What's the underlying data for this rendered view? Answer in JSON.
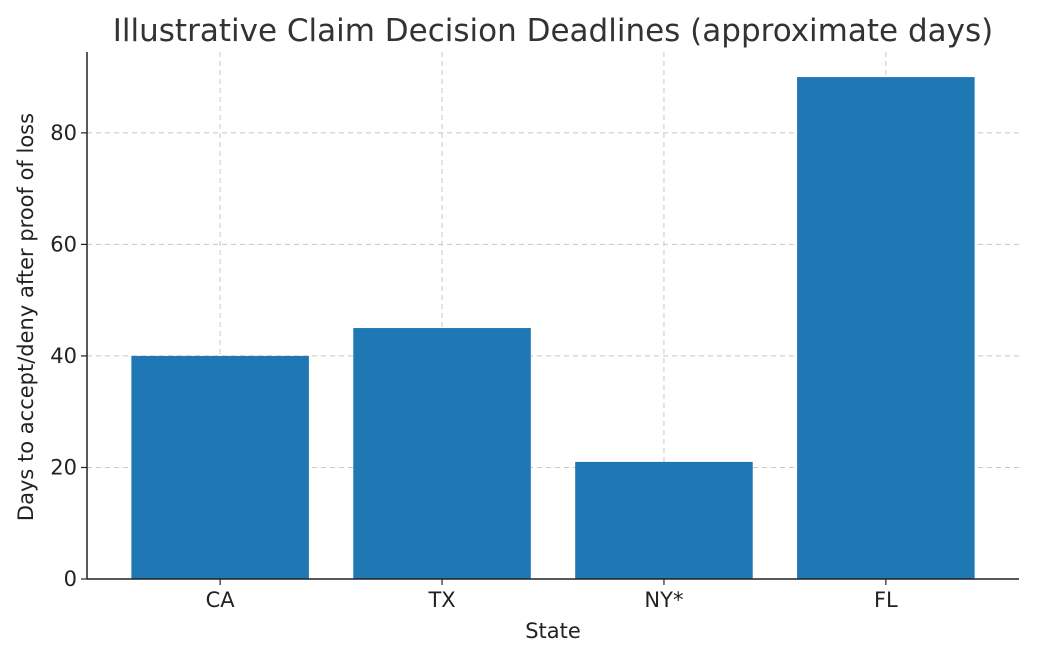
{
  "chart_data": {
    "type": "bar",
    "title": "Illustrative Claim Decision Deadlines (approximate days)",
    "xlabel": "State",
    "ylabel": "Days to accept/deny after proof of loss",
    "categories": [
      "CA",
      "TX",
      "NY*",
      "FL"
    ],
    "values": [
      40,
      45,
      21,
      90
    ],
    "ylim": [
      0,
      94.5
    ],
    "yticks": [
      0,
      20,
      40,
      60,
      80
    ],
    "grid": true,
    "bar_color": "#1f77b4"
  }
}
